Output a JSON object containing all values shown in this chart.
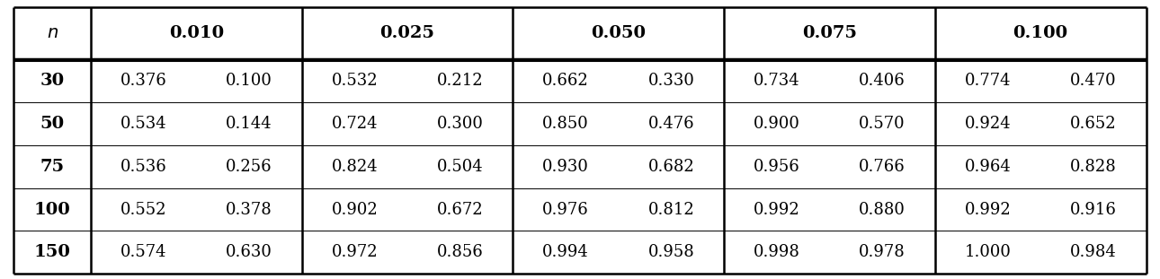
{
  "col_headers": [
    "n",
    "0.010",
    "0.025",
    "0.050",
    "0.075",
    "0.100"
  ],
  "row_labels": [
    "30",
    "50",
    "75",
    "100",
    "150"
  ],
  "table_data": [
    [
      "0.376",
      "0.100",
      "0.532",
      "0.212",
      "0.662",
      "0.330",
      "0.734",
      "0.406",
      "0.774",
      "0.470"
    ],
    [
      "0.534",
      "0.144",
      "0.724",
      "0.300",
      "0.850",
      "0.476",
      "0.900",
      "0.570",
      "0.924",
      "0.652"
    ],
    [
      "0.536",
      "0.256",
      "0.824",
      "0.504",
      "0.930",
      "0.682",
      "0.956",
      "0.766",
      "0.964",
      "0.828"
    ],
    [
      "0.552",
      "0.378",
      "0.902",
      "0.672",
      "0.976",
      "0.812",
      "0.992",
      "0.880",
      "0.992",
      "0.916"
    ],
    [
      "0.574",
      "0.630",
      "0.972",
      "0.856",
      "0.994",
      "0.958",
      "0.998",
      "0.978",
      "1.000",
      "0.984"
    ]
  ],
  "background_color": "#ffffff",
  "header_fontsize": 14,
  "cell_fontsize": 13,
  "row_label_fontsize": 14,
  "outer_lw": 1.8,
  "inner_lw": 0.7,
  "header_sep_lw": 2.5,
  "header_sep_lw2": 1.5
}
